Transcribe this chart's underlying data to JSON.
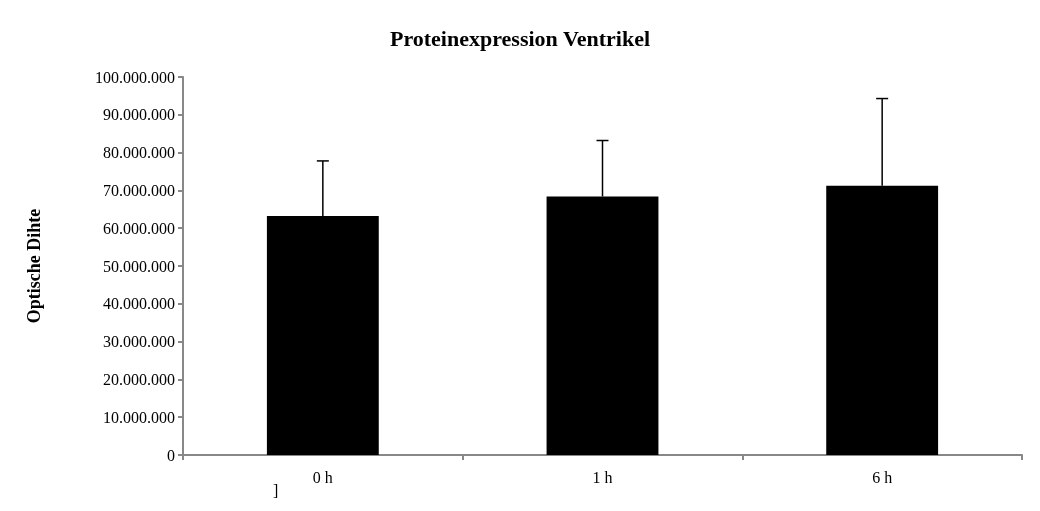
{
  "chart_data": {
    "type": "bar",
    "title": "Proteinexpression Ventrikel",
    "ylabel": "Optische Dihte",
    "categories": [
      "0 h",
      "1 h",
      "6 h"
    ],
    "values": [
      63200000,
      68400000,
      71200000
    ],
    "errors": [
      [
        63200000,
        77800000
      ],
      [
        68400000,
        83200000
      ],
      [
        71200000,
        94300000
      ]
    ],
    "color": "#000000",
    "ylim": [
      0,
      100000000
    ],
    "yticks": [
      0,
      {
        "value": 10000000,
        "label": "10.000.000"
      },
      {
        "value": 20000000,
        "label": "20.000.000"
      },
      {
        "value": 30000000,
        "label": "30.000.000"
      },
      {
        "value": 40000000,
        "label": "40.000.000"
      },
      {
        "value": 50000000,
        "label": "50.000.000"
      },
      {
        "value": 60000000,
        "label": "60.000.000"
      },
      {
        "value": 70000000,
        "label": "70.000.000"
      },
      {
        "value": 80000000,
        "label": "80.000.000"
      },
      {
        "value": 90000000,
        "label": "90.000.000"
      },
      {
        "value": 100000000,
        "label": "100.000.000"
      }
    ],
    "grid": false,
    "annotations": [
      "]"
    ]
  }
}
